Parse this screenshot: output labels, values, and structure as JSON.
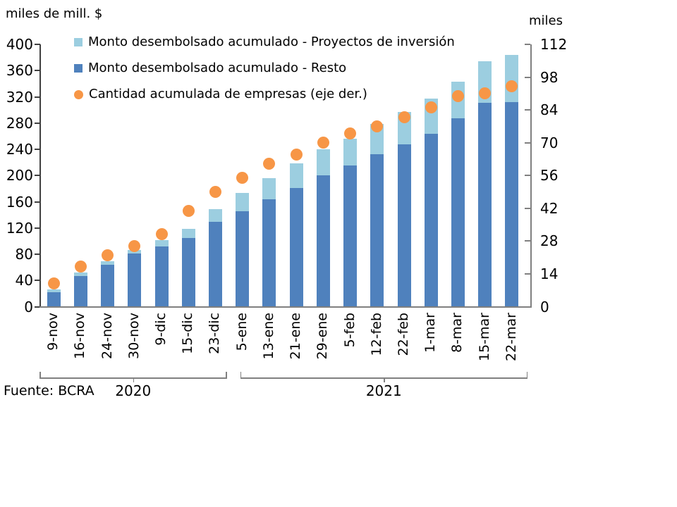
{
  "header": {
    "left_axis_title": "miles de mill. $",
    "right_axis_title": "miles"
  },
  "legend": {
    "position": "top-left",
    "items": [
      {
        "label": "Monto desembolsado acumulado - Proyectos de inversión",
        "marker": "square",
        "color": "#9CCEE0"
      },
      {
        "label": "Monto desembolsado acumulado - Resto",
        "marker": "square",
        "color": "#4F81BD"
      },
      {
        "label": "Cantidad acumulada de empresas (eje der.)",
        "marker": "circle",
        "color": "#F79646"
      }
    ]
  },
  "footer": {
    "source": "Fuente: BCRA"
  },
  "colors": {
    "resto": "#4F81BD",
    "proyectos": "#9CCEE0",
    "empresas": "#F79646",
    "left_axis_line": "#404040",
    "right_axis_line": "#808080",
    "bottom_axis_line": "#808080",
    "year_bracket_line": "#808080"
  },
  "chart_data": {
    "type": "bar",
    "subtype": "stacked-bars-with-secondary-axis-markers",
    "title": "",
    "grid": false,
    "legend_position": "top-left",
    "categories": [
      "9-nov",
      "16-nov",
      "24-nov",
      "30-nov",
      "9-dic",
      "15-dic",
      "23-dic",
      "5-ene",
      "13-ene",
      "21-ene",
      "29-ene",
      "5-feb",
      "12-feb",
      "22-feb",
      "1-mar",
      "8-mar",
      "15-mar",
      "22-mar"
    ],
    "series": [
      {
        "name": "Monto desembolsado acumulado - Resto",
        "type": "bar",
        "stack": "monto",
        "axis": "left",
        "color": "#4F81BD",
        "values": [
          22,
          47,
          64,
          81,
          92,
          105,
          129,
          146,
          164,
          181,
          200,
          215,
          232,
          248,
          264,
          287,
          311,
          312
        ]
      },
      {
        "name": "Monto desembolsado acumulado - Proyectos de inversión",
        "type": "bar",
        "stack": "monto",
        "axis": "left",
        "color": "#9CCEE0",
        "values": [
          4,
          5,
          5,
          5,
          9,
          14,
          20,
          27,
          32,
          37,
          40,
          41,
          47,
          49,
          53,
          56,
          63,
          72
        ]
      },
      {
        "name": "Cantidad acumulada de empresas (eje der.)",
        "type": "scatter",
        "axis": "right",
        "color": "#F79646",
        "values": [
          10,
          17,
          22,
          26,
          31,
          41,
          49,
          55,
          61,
          65,
          70,
          74,
          77,
          81,
          85,
          90,
          91,
          94
        ]
      }
    ],
    "stack_totals": [
      26,
      52,
      69,
      86,
      101,
      119,
      149,
      173,
      196,
      218,
      240,
      256,
      279,
      297,
      317,
      343,
      374,
      384
    ],
    "left_axis": {
      "title": "miles de mill. $",
      "min": 0,
      "max": 400,
      "ticks": [
        0,
        40,
        80,
        120,
        160,
        200,
        240,
        280,
        320,
        360,
        400
      ]
    },
    "right_axis": {
      "title": "miles",
      "min": 0,
      "max": 112,
      "ticks": [
        0,
        14,
        28,
        42,
        56,
        70,
        84,
        98,
        112
      ]
    },
    "year_groups": [
      {
        "label": "2020",
        "start": 0,
        "end": 6
      },
      {
        "label": "2021",
        "start": 7,
        "end": 17
      }
    ]
  }
}
